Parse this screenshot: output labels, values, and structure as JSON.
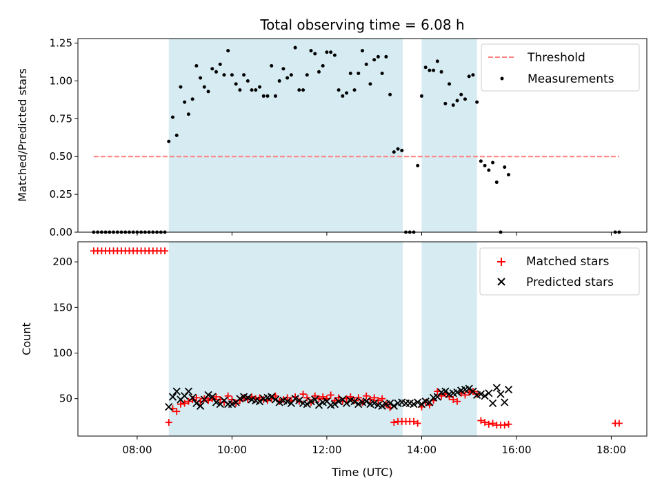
{
  "chart_data": [
    {
      "type": "scatter",
      "title": "Total observing time = 6.08 h",
      "xlabel": "",
      "ylabel": "Matched/Predicted stars",
      "xlim": [
        "06:45",
        "18:45"
      ],
      "ylim": [
        0,
        1.28
      ],
      "y_ticks": [
        0.0,
        0.25,
        0.5,
        0.75,
        1.0,
        1.25
      ],
      "y_tick_labels": [
        "0.00",
        "0.25",
        "0.50",
        "0.75",
        "1.00",
        "1.25"
      ],
      "legend_position": "top-right",
      "observing_windows": [
        [
          "08:40",
          "13:36"
        ],
        [
          "14:00",
          "15:10"
        ]
      ],
      "colors": {
        "window": "#add8e6",
        "threshold": "#ff7f7f",
        "points": "#000000"
      },
      "threshold": {
        "name": "Threshold",
        "value": 0.5,
        "x_range": [
          "07:05",
          "18:10"
        ]
      },
      "series": [
        {
          "name": "Measurements",
          "x": [
            "07:05",
            "07:10",
            "07:15",
            "07:20",
            "07:25",
            "07:30",
            "07:35",
            "07:40",
            "07:45",
            "07:50",
            "07:55",
            "08:00",
            "08:05",
            "08:10",
            "08:15",
            "08:20",
            "08:25",
            "08:30",
            "08:35",
            "08:40",
            "08:45",
            "08:50",
            "08:55",
            "09:00",
            "09:05",
            "09:10",
            "09:15",
            "09:20",
            "09:25",
            "09:30",
            "09:35",
            "09:40",
            "09:45",
            "09:50",
            "09:55",
            "10:00",
            "10:05",
            "10:10",
            "10:15",
            "10:20",
            "10:25",
            "10:30",
            "10:35",
            "10:40",
            "10:45",
            "10:50",
            "10:55",
            "11:00",
            "11:05",
            "11:10",
            "11:15",
            "11:20",
            "11:25",
            "11:30",
            "11:35",
            "11:40",
            "11:45",
            "11:50",
            "11:55",
            "12:00",
            "12:05",
            "12:10",
            "12:15",
            "12:20",
            "12:25",
            "12:30",
            "12:35",
            "12:40",
            "12:45",
            "12:50",
            "12:55",
            "13:00",
            "13:05",
            "13:10",
            "13:15",
            "13:20",
            "13:25",
            "13:30",
            "13:35",
            "13:40",
            "13:45",
            "13:50",
            "13:55",
            "14:00",
            "14:05",
            "14:10",
            "14:15",
            "14:20",
            "14:25",
            "14:30",
            "14:35",
            "14:40",
            "14:45",
            "14:50",
            "14:55",
            "15:00",
            "15:05",
            "15:10",
            "15:15",
            "15:20",
            "15:25",
            "15:30",
            "15:35",
            "15:40",
            "15:45",
            "15:50",
            "18:05",
            "18:10"
          ],
          "y": [
            0,
            0,
            0,
            0,
            0,
            0,
            0,
            0,
            0,
            0,
            0,
            0,
            0,
            0,
            0,
            0,
            0,
            0,
            0,
            0.6,
            0.76,
            0.64,
            0.96,
            0.86,
            0.78,
            0.88,
            1.1,
            1.02,
            0.96,
            0.93,
            1.08,
            1.06,
            1.11,
            1.04,
            1.2,
            1.04,
            0.98,
            0.94,
            1.04,
            1.0,
            0.94,
            0.94,
            0.96,
            0.9,
            0.9,
            1.1,
            0.9,
            1.0,
            1.08,
            1.02,
            1.04,
            1.22,
            0.94,
            0.94,
            1.04,
            1.2,
            1.18,
            1.06,
            1.1,
            1.19,
            1.19,
            1.17,
            0.94,
            0.9,
            0.92,
            1.05,
            0.94,
            1.05,
            1.2,
            1.11,
            0.98,
            1.14,
            1.16,
            1.05,
            1.16,
            0.91,
            0.53,
            0.55,
            0.54,
            0,
            0,
            0,
            0.44,
            0.9,
            1.09,
            1.07,
            1.07,
            1.13,
            1.06,
            0.85,
            0.98,
            0.84,
            0.87,
            0.91,
            0.88,
            1.03,
            1.04,
            0.86,
            0.47,
            0.44,
            0.41,
            0.46,
            0.33,
            0,
            0.43,
            0.38,
            0,
            0
          ]
        }
      ]
    },
    {
      "type": "scatter",
      "title": "",
      "xlabel": "Time (UTC)",
      "ylabel": "Count",
      "xlim": [
        "06:45",
        "18:45"
      ],
      "ylim": [
        9,
        222
      ],
      "x_ticks": [
        "08:00",
        "10:00",
        "12:00",
        "14:00",
        "16:00",
        "18:00"
      ],
      "y_ticks": [
        50,
        100,
        150,
        200
      ],
      "legend_position": "top-right",
      "colors": {
        "matched": "#ff0000",
        "predicted": "#000000"
      },
      "series": [
        {
          "name": "Matched stars",
          "marker": "+",
          "x": [
            "07:05",
            "07:10",
            "07:15",
            "07:20",
            "07:25",
            "07:30",
            "07:35",
            "07:40",
            "07:45",
            "07:50",
            "07:55",
            "08:00",
            "08:05",
            "08:10",
            "08:15",
            "08:20",
            "08:25",
            "08:30",
            "08:35",
            "08:40",
            "08:45",
            "08:50",
            "08:55",
            "09:00",
            "09:05",
            "09:10",
            "09:15",
            "09:20",
            "09:25",
            "09:30",
            "09:35",
            "09:40",
            "09:45",
            "09:50",
            "09:55",
            "10:00",
            "10:05",
            "10:10",
            "10:15",
            "10:20",
            "10:25",
            "10:30",
            "10:35",
            "10:40",
            "10:45",
            "10:50",
            "10:55",
            "11:00",
            "11:05",
            "11:10",
            "11:15",
            "11:20",
            "11:25",
            "11:30",
            "11:35",
            "11:40",
            "11:45",
            "11:50",
            "11:55",
            "12:00",
            "12:05",
            "12:10",
            "12:15",
            "12:20",
            "12:25",
            "12:30",
            "12:35",
            "12:40",
            "12:45",
            "12:50",
            "12:55",
            "13:00",
            "13:05",
            "13:10",
            "13:15",
            "13:20",
            "13:25",
            "13:30",
            "13:35",
            "13:40",
            "13:45",
            "13:50",
            "13:55",
            "14:00",
            "14:05",
            "14:10",
            "14:15",
            "14:20",
            "14:25",
            "14:30",
            "14:35",
            "14:40",
            "14:45",
            "14:50",
            "14:55",
            "15:00",
            "15:05",
            "15:10",
            "15:15",
            "15:20",
            "15:25",
            "15:30",
            "15:35",
            "15:40",
            "15:45",
            "15:50",
            "18:05",
            "18:10"
          ],
          "y": [
            212,
            212,
            212,
            212,
            212,
            212,
            212,
            212,
            212,
            212,
            212,
            212,
            212,
            212,
            212,
            212,
            212,
            212,
            212,
            24,
            39,
            36,
            44,
            45,
            47,
            49,
            51,
            47,
            50,
            48,
            50,
            52,
            49,
            46,
            53,
            49,
            45,
            48,
            51,
            49,
            52,
            50,
            51,
            49,
            48,
            50,
            53,
            47,
            49,
            51,
            48,
            52,
            47,
            55,
            51,
            46,
            53,
            50,
            52,
            50,
            54,
            48,
            51,
            47,
            50,
            52,
            48,
            51,
            46,
            53,
            49,
            51,
            48,
            50,
            44,
            40,
            24,
            25,
            25,
            25,
            25,
            25,
            23,
            41,
            46,
            43,
            48,
            58,
            53,
            55,
            52,
            49,
            47,
            56,
            54,
            57,
            58,
            55,
            26,
            24,
            22,
            23,
            21,
            21,
            21,
            22,
            23,
            23
          ]
        },
        {
          "name": "Predicted stars",
          "marker": "x",
          "x": [
            "08:40",
            "08:45",
            "08:50",
            "08:55",
            "09:00",
            "09:05",
            "09:10",
            "09:15",
            "09:20",
            "09:25",
            "09:30",
            "09:35",
            "09:40",
            "09:45",
            "09:50",
            "09:55",
            "10:00",
            "10:05",
            "10:10",
            "10:15",
            "10:20",
            "10:25",
            "10:30",
            "10:35",
            "10:40",
            "10:45",
            "10:50",
            "10:55",
            "11:00",
            "11:05",
            "11:10",
            "11:15",
            "11:20",
            "11:25",
            "11:30",
            "11:35",
            "11:40",
            "11:45",
            "11:50",
            "11:55",
            "12:00",
            "12:05",
            "12:10",
            "12:15",
            "12:20",
            "12:25",
            "12:30",
            "12:35",
            "12:40",
            "12:45",
            "12:50",
            "12:55",
            "13:00",
            "13:05",
            "13:10",
            "13:15",
            "13:20",
            "13:25",
            "13:30",
            "13:35",
            "13:40",
            "13:45",
            "13:50",
            "13:55",
            "14:00",
            "14:05",
            "14:10",
            "14:15",
            "14:20",
            "14:25",
            "14:30",
            "14:35",
            "14:40",
            "14:45",
            "14:50",
            "14:55",
            "15:00",
            "15:05",
            "15:10",
            "15:15",
            "15:20",
            "15:25",
            "15:30",
            "15:35",
            "15:40",
            "15:45",
            "15:50"
          ],
          "y": [
            41,
            52,
            58,
            49,
            53,
            58,
            51,
            45,
            42,
            49,
            54,
            52,
            46,
            44,
            48,
            44,
            44,
            46,
            50,
            52,
            51,
            49,
            48,
            47,
            50,
            51,
            52,
            49,
            46,
            48,
            47,
            45,
            50,
            48,
            45,
            44,
            47,
            49,
            43,
            46,
            47,
            43,
            44,
            47,
            49,
            45,
            48,
            47,
            44,
            46,
            47,
            44,
            45,
            43,
            42,
            44,
            45,
            42,
            45,
            46,
            45,
            45,
            44,
            46,
            44,
            47,
            46,
            51,
            52,
            57,
            58,
            55,
            56,
            57,
            59,
            60,
            61,
            58,
            54,
            55,
            53,
            56,
            45,
            62,
            55,
            46,
            60
          ]
        }
      ]
    }
  ]
}
